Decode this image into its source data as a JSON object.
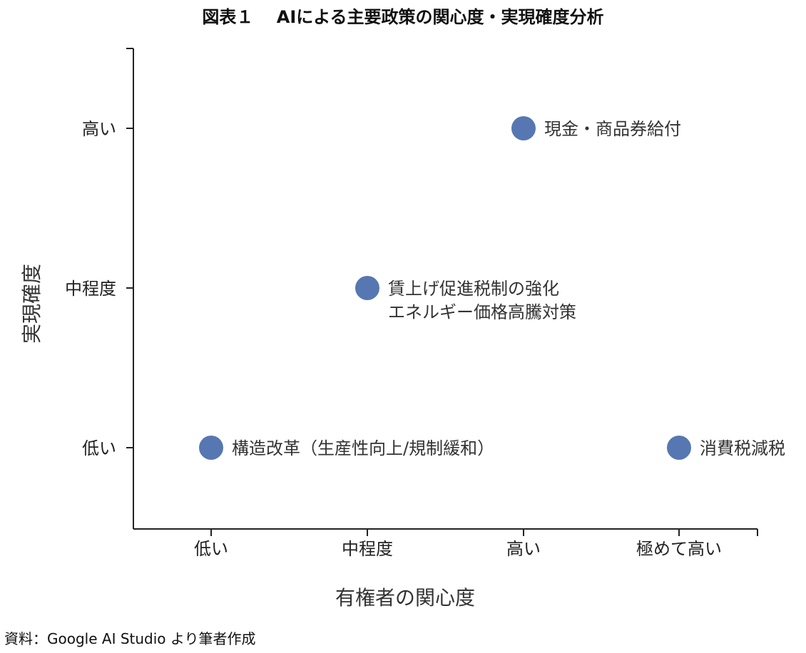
{
  "title": "図表１　 AIによる主要政策の関心度・実現確度分析",
  "source": "資料：Google AI Studio より筆者作成",
  "chart_data": {
    "type": "scatter",
    "title": "図表１　 AIによる主要政策の関心度・実現確度分析",
    "xlabel": "有権者の関心度",
    "ylabel": "実現確度",
    "x_categories": [
      "低い",
      "中程度",
      "高い",
      "極めて高い"
    ],
    "y_categories": [
      "低い",
      "中程度",
      "高い"
    ],
    "grid": false,
    "marker_color": "#5677b1",
    "points": [
      {
        "x": "高い",
        "y": "高い",
        "labels": [
          "現金・商品券給付"
        ]
      },
      {
        "x": "中程度",
        "y": "中程度",
        "labels": [
          "賃上げ促進税制の強化",
          "エネルギー価格高騰対策"
        ]
      },
      {
        "x": "低い",
        "y": "低い",
        "labels": [
          "構造改革（生産性向上/規制緩和）"
        ]
      },
      {
        "x": "極めて高い",
        "y": "低い",
        "labels": [
          "消費税減税"
        ]
      }
    ]
  }
}
